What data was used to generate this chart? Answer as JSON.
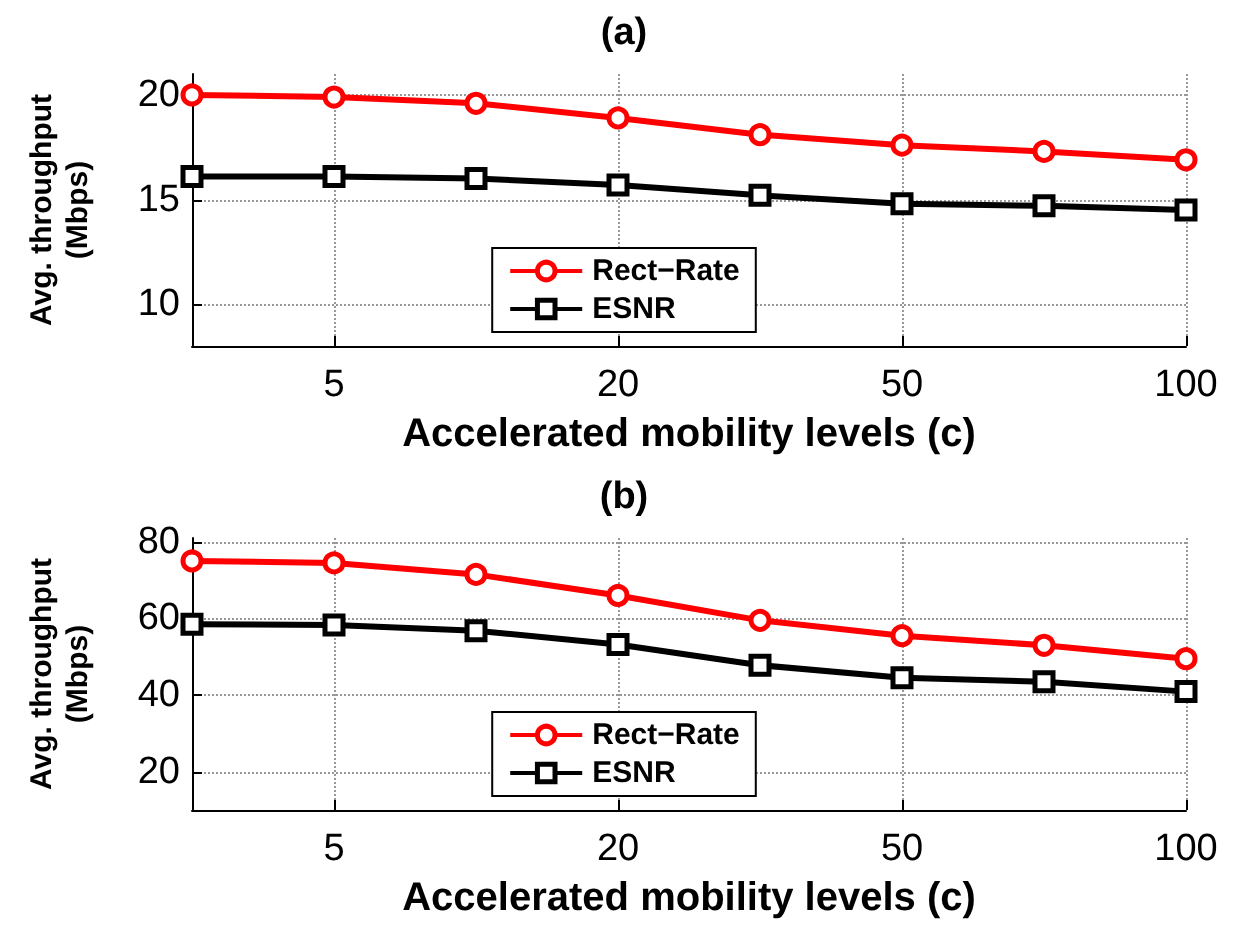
{
  "chart_data": [
    {
      "type": "line",
      "title": "(a)",
      "xlabel": "Accelerated mobility levels (c)",
      "ylabel": "Avg. throughput\n(Mbps)",
      "categories": [
        null,
        "5",
        null,
        "20",
        null,
        "50",
        null,
        "100"
      ],
      "ylim": [
        8,
        21
      ],
      "yticks": [
        10,
        15,
        20
      ],
      "grid": true,
      "legend": "bottom",
      "series": [
        {
          "name": "Rect−Rate",
          "color": "#ff0000",
          "marker": "circle",
          "values": [
            20.0,
            19.9,
            19.6,
            18.9,
            18.1,
            17.6,
            17.3,
            16.9
          ]
        },
        {
          "name": "ESNR",
          "color": "#000000",
          "marker": "square",
          "values": [
            16.1,
            16.1,
            16.0,
            15.7,
            15.2,
            14.8,
            14.7,
            14.5
          ]
        }
      ]
    },
    {
      "type": "line",
      "title": "(b)",
      "xlabel": "Accelerated mobility levels (c)",
      "ylabel": "Avg. throughput\n(Mbps)",
      "categories": [
        null,
        "5",
        null,
        "20",
        null,
        "50",
        null,
        "100"
      ],
      "ylim": [
        10,
        81
      ],
      "yticks": [
        20,
        40,
        60,
        80
      ],
      "grid": true,
      "legend": "bottom",
      "series": [
        {
          "name": "Rect−Rate",
          "color": "#ff0000",
          "marker": "circle",
          "values": [
            75,
            74.5,
            71.5,
            66,
            59.5,
            55.5,
            53,
            49.5
          ]
        },
        {
          "name": "ESNR",
          "color": "#000000",
          "marker": "square",
          "values": [
            58.5,
            58.3,
            56.8,
            53.2,
            47.8,
            44.5,
            43.5,
            40.9
          ]
        }
      ]
    }
  ]
}
